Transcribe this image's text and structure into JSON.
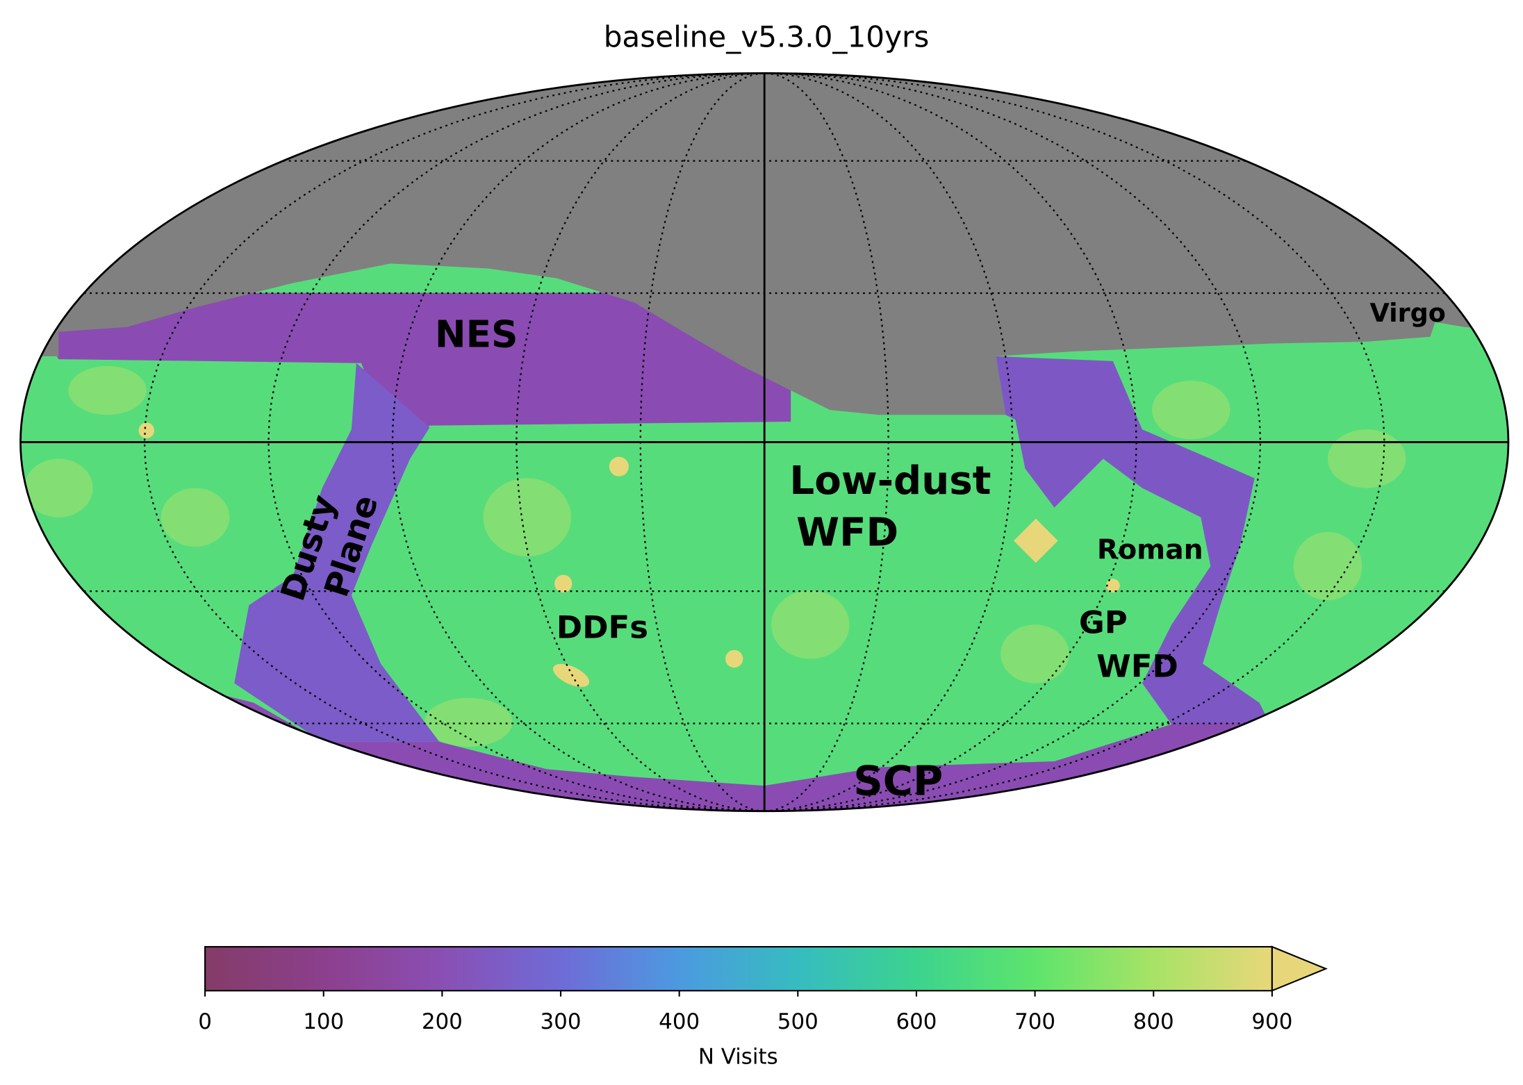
{
  "chart_data": {
    "type": "skymap",
    "title": "baseline_v5.3.0_10yrs",
    "annotations": [
      "NES",
      "Virgo",
      "Low-dust",
      "WFD",
      "Dusty",
      "Plane",
      "DDFs",
      "Roman",
      "GP",
      "WFD",
      "SCP"
    ],
    "colorbar": {
      "label": "N Visits",
      "lim": [
        0,
        900
      ],
      "ticks": [
        0,
        100,
        200,
        300,
        400,
        500,
        600,
        700,
        800,
        900
      ],
      "colors": [
        "#843c68",
        "#8c3f8c",
        "#8a4fb4",
        "#6f6bd6",
        "#4c9ae0",
        "#36bcc0",
        "#3cd38e",
        "#5ee46c",
        "#a7e366",
        "#e8d77a"
      ],
      "extend": "max"
    }
  }
}
